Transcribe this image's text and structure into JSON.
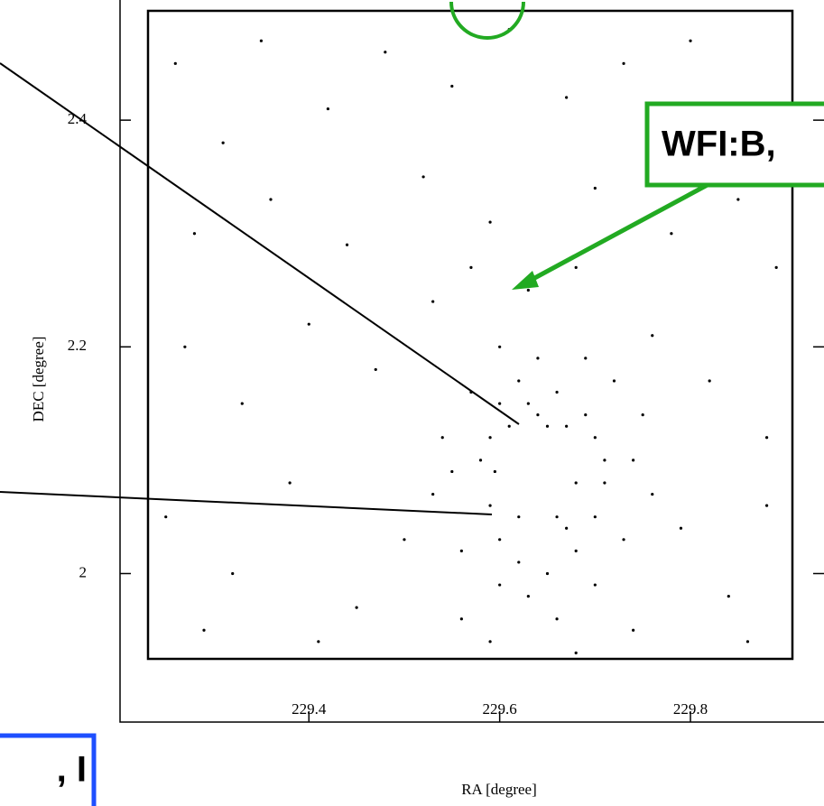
{
  "chart_data": {
    "type": "scatter",
    "xlabel": "RA [degree]",
    "ylabel": "DEC [degree]",
    "x": [
      229.26,
      229.31,
      229.35,
      229.42,
      229.48,
      229.55,
      229.61,
      229.67,
      229.73,
      229.8,
      229.86,
      229.28,
      229.36,
      229.44,
      229.52,
      229.59,
      229.7,
      229.78,
      229.85,
      229.89,
      229.27,
      229.33,
      229.4,
      229.47,
      229.53,
      229.76,
      229.82,
      229.88,
      229.25,
      229.32,
      229.38,
      229.45,
      229.5,
      229.79,
      229.84,
      229.88,
      229.29,
      229.41,
      229.56,
      229.74,
      229.86,
      229.63,
      229.57,
      229.68,
      229.6,
      229.62,
      229.66,
      229.69,
      229.7,
      229.59,
      229.58,
      229.59,
      229.6,
      229.62,
      229.65,
      229.68,
      229.7,
      229.71,
      229.71,
      229.64,
      229.61,
      229.67,
      229.62,
      229.66,
      229.63,
      229.66,
      229.6,
      229.7,
      229.59,
      229.68,
      229.64,
      229.6,
      229.69,
      229.55,
      229.53,
      229.56,
      229.54,
      229.74,
      229.76,
      229.73,
      229.75,
      229.57,
      229.72,
      229.595,
      229.68,
      229.65,
      229.63,
      229.67,
      229.61
    ],
    "y": [
      2.45,
      2.38,
      2.47,
      2.41,
      2.46,
      2.43,
      2.48,
      2.42,
      2.45,
      2.47,
      2.4,
      2.3,
      2.33,
      2.29,
      2.35,
      2.31,
      2.34,
      2.3,
      2.33,
      2.27,
      2.2,
      2.15,
      2.22,
      2.18,
      2.24,
      2.21,
      2.17,
      2.12,
      2.05,
      2.0,
      2.08,
      1.97,
      2.03,
      2.04,
      1.98,
      2.06,
      1.95,
      1.94,
      1.96,
      1.95,
      1.94,
      2.25,
      2.27,
      2.27,
      2.15,
      2.17,
      2.16,
      2.14,
      2.12,
      2.12,
      2.1,
      2.06,
      2.03,
      2.01,
      2.0,
      2.02,
      2.05,
      2.08,
      2.1,
      2.14,
      2.13,
      2.13,
      2.05,
      2.05,
      1.98,
      1.96,
      1.99,
      1.99,
      1.94,
      1.93,
      2.19,
      2.2,
      2.19,
      2.09,
      2.07,
      2.02,
      2.12,
      2.1,
      2.07,
      2.03,
      2.14,
      2.16,
      2.17,
      2.09,
      2.08,
      2.13,
      2.15,
      2.04,
      2.07
    ],
    "color": "#000000",
    "xlim": [
      229.202,
      229.94
    ],
    "ylim": [
      1.869,
      2.506
    ],
    "xticks": [
      229.4,
      229.6,
      229.8
    ],
    "yticks": [
      2,
      2.2,
      2.4
    ],
    "annotations": [
      "WFI:B,",
      ", I"
    ]
  }
}
